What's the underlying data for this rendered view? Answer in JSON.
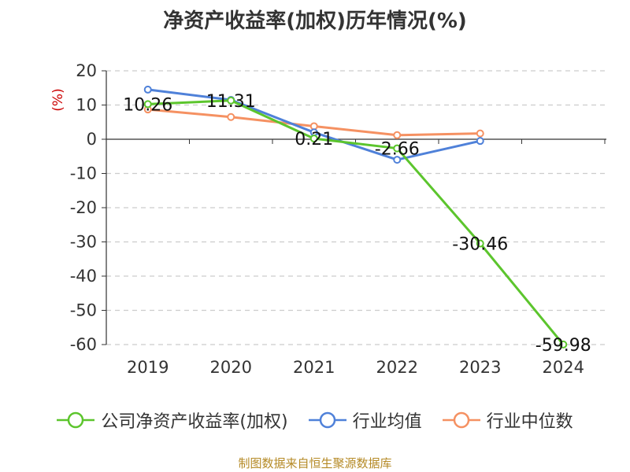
{
  "chart_data": {
    "type": "line",
    "title": "净资产收益率(加权)历年情况(%)",
    "ylabel": "(%)",
    "xlabel": "",
    "ylim": [
      -60,
      20
    ],
    "yticks": [
      20,
      10,
      0,
      -10,
      -20,
      -30,
      -40,
      -50,
      -60
    ],
    "categories": [
      "2019",
      "2020",
      "2021",
      "2022",
      "2023",
      "2024"
    ],
    "series": [
      {
        "name": "公司净资产收益率(加权)",
        "color": "#5cc52d",
        "values": [
          10.26,
          11.31,
          0.21,
          -2.66,
          -30.46,
          -59.98
        ],
        "labels": [
          "10.26",
          "11.31",
          "0.21",
          "-2.66",
          "-30.46",
          "-59.98"
        ]
      },
      {
        "name": "行业均值",
        "color": "#4f81d9",
        "values": [
          14.5,
          11.5,
          2.0,
          -6.0,
          -0.5,
          null
        ]
      },
      {
        "name": "行业中位数",
        "color": "#f59162",
        "values": [
          8.7,
          6.5,
          3.8,
          1.2,
          1.7,
          null
        ]
      }
    ],
    "grid": true,
    "legend": "bottom"
  },
  "source": "制图数据来自恒生聚源数据库"
}
